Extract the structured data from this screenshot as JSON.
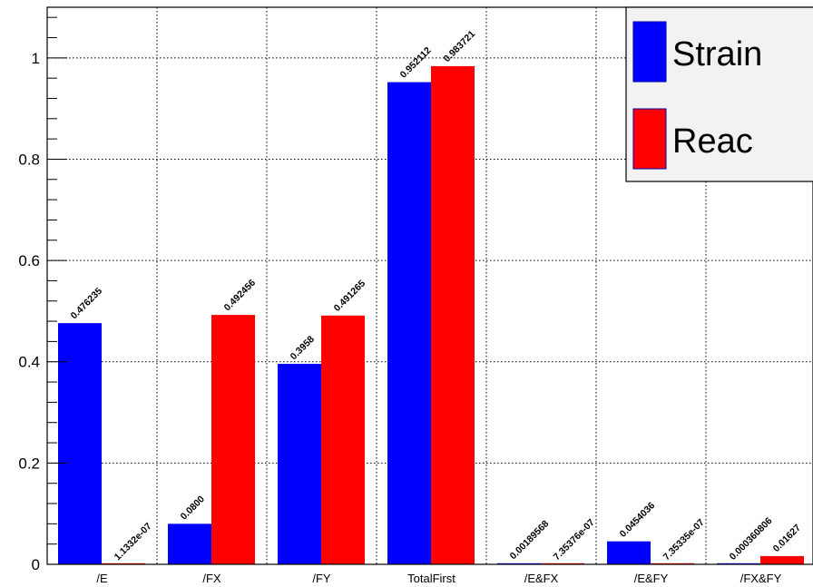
{
  "chart_data": {
    "type": "bar",
    "categories": [
      "/E",
      "/FX",
      "/FY",
      "TotalFirst",
      "/E&FX",
      "/E&FY",
      "/FX&FY"
    ],
    "series": [
      {
        "name": "Strain",
        "color": "#0000ff",
        "values": [
          0.476235,
          0.08,
          0.3958,
          0.952112,
          0.00189568,
          0.0454036,
          0.000360806
        ],
        "labels": [
          "0.476235",
          "0.0800",
          "0.3958",
          "0.952112",
          "0.00189568",
          "0.0454036",
          "0.000360806"
        ]
      },
      {
        "name": "Reac",
        "color": "#ff0000",
        "values": [
          1.1332e-07,
          0.492456,
          0.491265,
          0.983721,
          7.35376e-07,
          7.35335e-07,
          0.01627
        ],
        "labels": [
          "1.1332e-07",
          "0.492456",
          "0.491265",
          "0.983721",
          "7.35376e-07",
          "7.35335e-07",
          "0.01627"
        ]
      }
    ],
    "yticks": [
      "0",
      "0.2",
      "0.4",
      "0.6",
      "0.8",
      "1"
    ],
    "ylim": [
      0,
      1.1
    ],
    "grid": true,
    "legend_position": "top-right"
  }
}
